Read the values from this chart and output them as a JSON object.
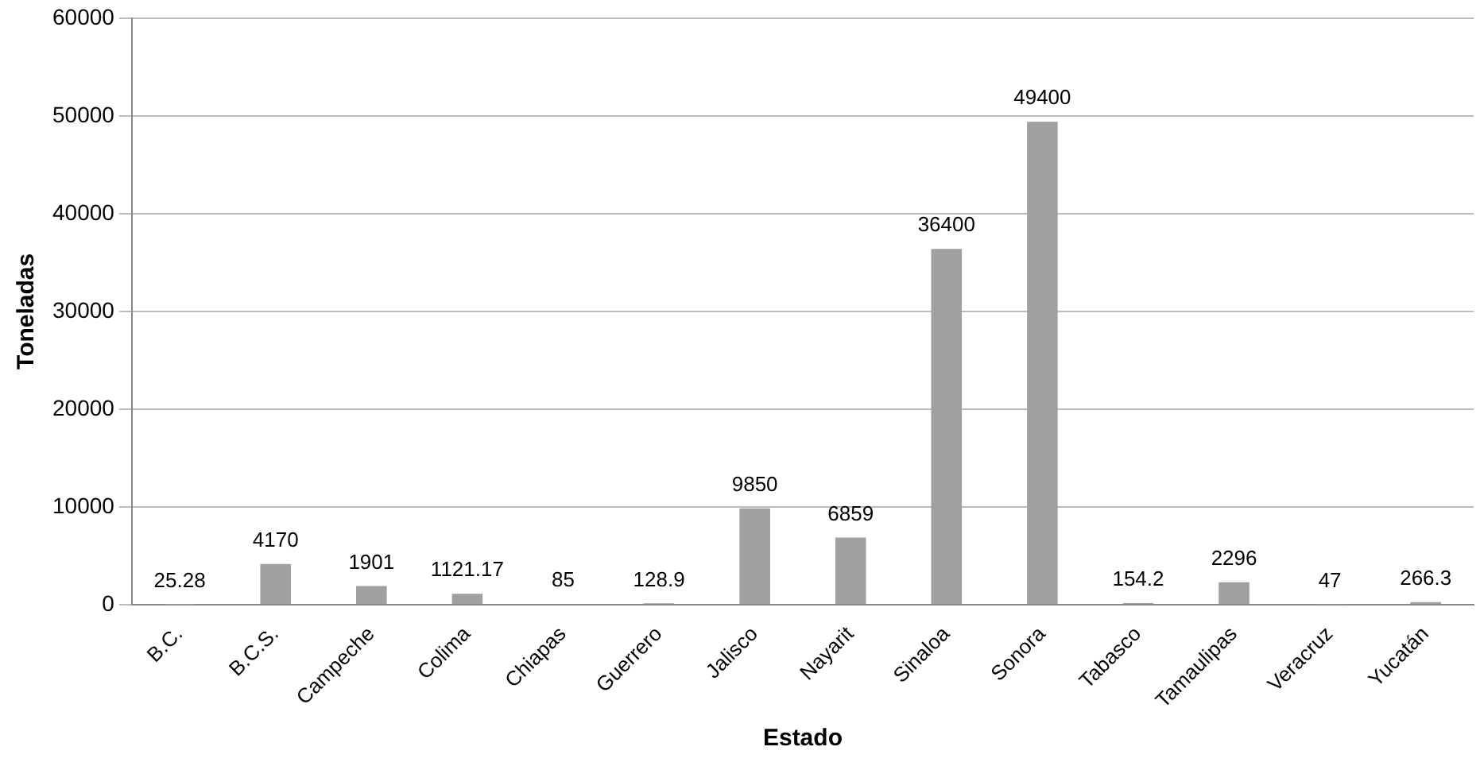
{
  "chart_data": {
    "type": "bar",
    "xlabel": "Estado",
    "ylabel": "Toneladas",
    "categories": [
      "B.C.",
      "B.C.S.",
      "Campeche",
      "Colima",
      "Chiapas",
      "Guerrero",
      "Jalisco",
      "Nayarit",
      "Sinaloa",
      "Sonora",
      "Tabasco",
      "Tamaulipas",
      "Veracruz",
      "Yucatán"
    ],
    "values": [
      25.28,
      4170,
      1901,
      1121.17,
      85,
      128.9,
      9850,
      6859,
      36400,
      49400,
      154.2,
      2296,
      47,
      266.3
    ],
    "color": "#a0a0a0",
    "ylim": [
      0,
      60000
    ],
    "yticks": [
      0,
      10000,
      20000,
      30000,
      40000,
      50000,
      60000
    ],
    "grid": "y",
    "data_labels": true,
    "legend": false
  }
}
